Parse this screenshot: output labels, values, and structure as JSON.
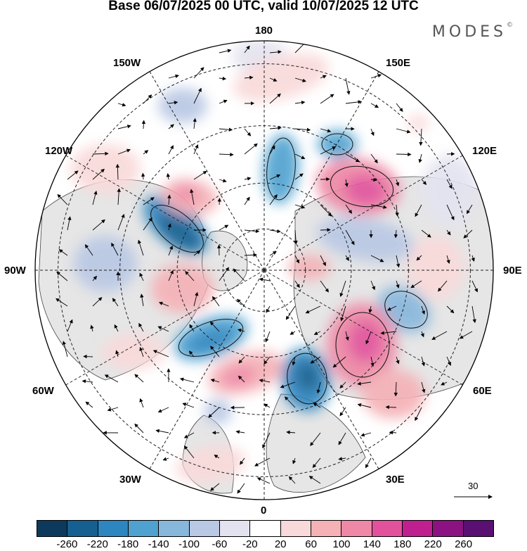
{
  "title": "Base 06/07/2025 00 UTC, valid 10/07/2025 12 UTC",
  "brand": "MODES",
  "brand_mark": "©",
  "longitude_labels": {
    "top": "180",
    "top_left": "150W",
    "top_right": "150E",
    "upper_left": "120W",
    "upper_right": "120E",
    "left": "90W",
    "right": "90E",
    "lower_left": "60W",
    "lower_right": "60E",
    "bottom_left": "30W",
    "bottom_right": "30E",
    "bottom": "0"
  },
  "reference_vector": "30",
  "colorbar": {
    "colors": [
      "#0d3a5c",
      "#155f91",
      "#2d86c0",
      "#4fa2d0",
      "#88b7dc",
      "#b9c8e4",
      "#e3e3f0",
      "#ffffff",
      "#f9d9d9",
      "#f4b1b6",
      "#ee88a6",
      "#e2529c",
      "#c0208f",
      "#8c1283",
      "#5a0f73"
    ],
    "ticks": [
      "-260",
      "-220",
      "-180",
      "-140",
      "-100",
      "-60",
      "-20",
      "20",
      "60",
      "100",
      "140",
      "180",
      "220",
      "260"
    ]
  },
  "icons": {
    "map_features": "polar-stereographic-map",
    "wind_arrows": "wind-vector-arrows"
  }
}
